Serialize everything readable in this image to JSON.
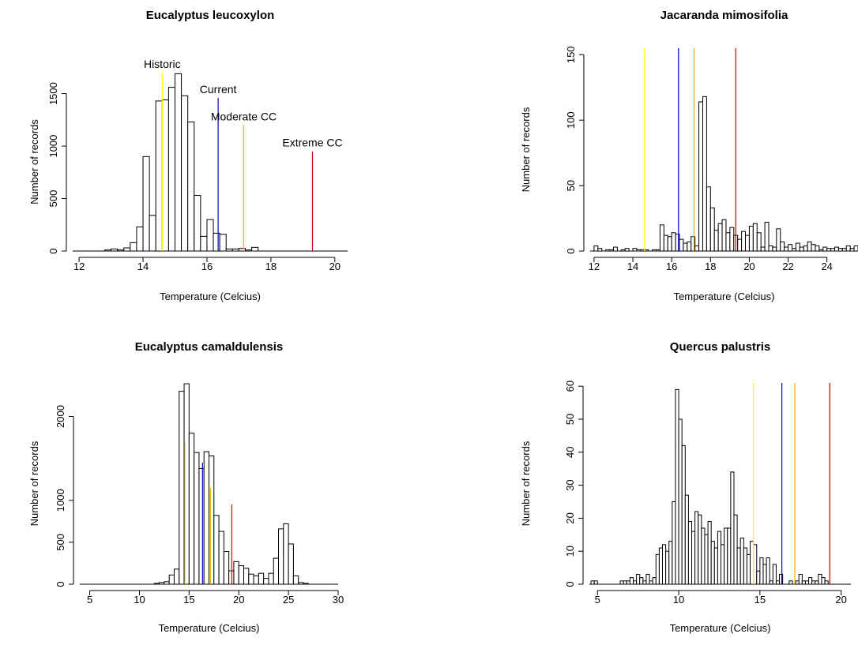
{
  "reference_lines": [
    {
      "name": "Historic",
      "x": 14.6,
      "color": "#ffff00"
    },
    {
      "name": "Current",
      "x": 16.35,
      "color": "#0000cc"
    },
    {
      "name": "Moderate CC",
      "x": 17.15,
      "color": "#ffa500"
    },
    {
      "name": "Extreme CC",
      "x": 19.3,
      "color": "#cc0000"
    }
  ],
  "chart_data": [
    {
      "type": "bar",
      "title": "Eucalyptus leucoxylon",
      "xlabel": "Temperature (Celcius)",
      "ylabel": "Number of records",
      "xlim": [
        11.8,
        20.4
      ],
      "ylim": [
        0,
        1700
      ],
      "xticks": [
        12,
        14,
        16,
        18,
        20
      ],
      "yticks": [
        0,
        500,
        1000,
        1500
      ],
      "bin_start": 11.8,
      "bin_width": 0.2,
      "counts": [
        0,
        0,
        0,
        0,
        0,
        10,
        20,
        10,
        30,
        80,
        230,
        900,
        340,
        1430,
        1440,
        1560,
        1690,
        1480,
        1230,
        530,
        140,
        300,
        170,
        160,
        20,
        20,
        25,
        10,
        35,
        0,
        0,
        0,
        0,
        0,
        0,
        0,
        0,
        0,
        0,
        0,
        0,
        0,
        0
      ],
      "annotate_lines": true,
      "line_heights": [
        1710,
        1460,
        1200,
        950
      ]
    },
    {
      "type": "bar",
      "title": "Jacaranda mimosifolia",
      "xlabel": "Temperature (Celcius)",
      "ylabel": "Number of records",
      "xlim": [
        11.8,
        25.6
      ],
      "ylim": [
        0,
        155
      ],
      "xticks": [
        12,
        14,
        16,
        18,
        20,
        22,
        24
      ],
      "yticks": [
        0,
        50,
        100,
        150
      ],
      "bin_start": 11.8,
      "bin_width": 0.2,
      "counts": [
        0,
        4,
        2,
        0,
        1,
        1,
        3,
        0,
        1,
        2,
        0,
        2,
        1,
        1,
        1,
        0,
        1,
        1,
        20,
        12,
        11,
        14,
        13,
        9,
        6,
        7,
        11,
        4,
        114,
        118,
        49,
        33,
        16,
        21,
        24,
        14,
        18,
        12,
        9,
        15,
        12,
        19,
        21,
        14,
        3,
        22,
        4,
        3,
        17,
        7,
        3,
        5,
        2,
        6,
        3,
        4,
        7,
        5,
        4,
        1,
        3,
        2,
        2,
        3,
        2,
        2,
        4,
        2,
        4,
        3,
        5,
        3,
        2,
        3,
        5,
        4,
        2,
        5
      ],
      "annotate_lines": false,
      "line_heights": [
        155,
        155,
        155,
        155
      ]
    },
    {
      "type": "bar",
      "title": "Eucalyptus camaldulensis",
      "xlabel": "Temperature (Celcius)",
      "ylabel": "Number of records",
      "xlim": [
        4,
        30
      ],
      "ylim": [
        0,
        2400
      ],
      "xticks": [
        5,
        10,
        15,
        20,
        25,
        30
      ],
      "yticks": [
        0,
        500,
        1000,
        2000
      ],
      "bin_start": 4.5,
      "bin_width": 0.5,
      "counts": [
        0,
        0,
        0,
        0,
        0,
        0,
        0,
        0,
        0,
        0,
        0,
        0,
        0,
        0,
        10,
        20,
        30,
        110,
        180,
        2300,
        2390,
        1800,
        1570,
        1380,
        1580,
        1530,
        820,
        630,
        390,
        160,
        270,
        220,
        190,
        120,
        100,
        130,
        70,
        130,
        310,
        660,
        720,
        480,
        100,
        20,
        10,
        0
      ],
      "annotate_lines": false,
      "line_heights": [
        1700,
        1450,
        1150,
        950
      ]
    },
    {
      "type": "bar",
      "title": "Quercus palustris",
      "xlabel": "Temperature (Celcius)",
      "ylabel": "Number of records",
      "xlim": [
        4.5,
        20.6
      ],
      "ylim": [
        0,
        61
      ],
      "xticks": [
        5,
        10,
        15,
        20
      ],
      "yticks": [
        0,
        10,
        20,
        30,
        40,
        50,
        60
      ],
      "bin_start": 4.6,
      "bin_width": 0.2,
      "counts": [
        1,
        1,
        0,
        0,
        0,
        0,
        0,
        0,
        0,
        1,
        1,
        1,
        2,
        1,
        3,
        2,
        1,
        3,
        1,
        2,
        9,
        11,
        12,
        10,
        13,
        25,
        59,
        50,
        42,
        27,
        19,
        16,
        22,
        21,
        17,
        15,
        19,
        13,
        11,
        16,
        12,
        17,
        17,
        34,
        21,
        11,
        14,
        11,
        9,
        13,
        12,
        4,
        8,
        6,
        8,
        1,
        6,
        1,
        3,
        0,
        0,
        1,
        0,
        1,
        3,
        1,
        1,
        2,
        1,
        1,
        3,
        2,
        1,
        0,
        0,
        0,
        0,
        0,
        0,
        0,
        0,
        0,
        0,
        0,
        0,
        0,
        0,
        0,
        1
      ],
      "annotate_lines": false,
      "line_heights": [
        61,
        61,
        61,
        61
      ]
    }
  ]
}
